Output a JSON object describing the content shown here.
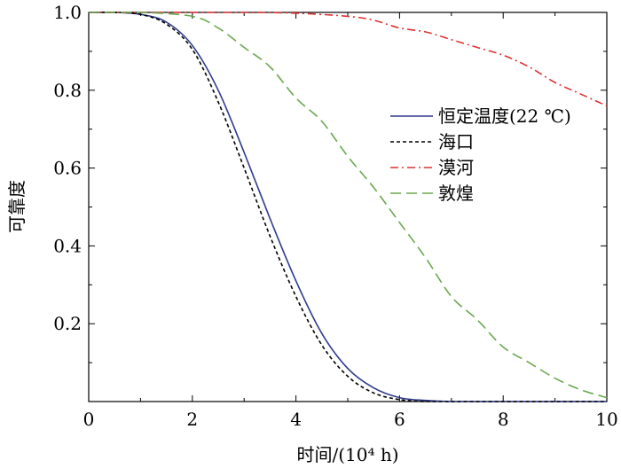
{
  "chart_data": {
    "type": "line",
    "title": "",
    "xlabel": "时间/(10⁴ h)",
    "ylabel": "可靠度",
    "xlim": [
      0,
      10
    ],
    "ylim": [
      0,
      1.0
    ],
    "x_ticks": [
      "0",
      "2",
      "4",
      "6",
      "8",
      "10"
    ],
    "y_ticks": [
      "0.2",
      "0.4",
      "0.6",
      "0.8",
      "1.0"
    ],
    "legend_position": "top-right",
    "grid": false,
    "series": [
      {
        "name": "恒定温度(22 ℃)",
        "color": "#2e3a8c",
        "dash": "solid",
        "x": [
          0,
          0.5,
          1.0,
          1.5,
          2.0,
          2.5,
          3.0,
          3.5,
          4.0,
          4.5,
          5.0,
          5.5,
          6.0,
          6.5,
          7.0,
          8.0,
          9.0,
          10.0
        ],
        "y": [
          1.0,
          1.0,
          0.995,
          0.975,
          0.915,
          0.8,
          0.64,
          0.47,
          0.31,
          0.175,
          0.085,
          0.035,
          0.01,
          0.003,
          0.0,
          0.0,
          0.0,
          0.0
        ]
      },
      {
        "name": "海口",
        "color": "#000000",
        "dash": "dotted",
        "x": [
          0,
          0.5,
          1.0,
          1.5,
          2.0,
          2.5,
          3.0,
          3.5,
          4.0,
          4.5,
          5.0,
          5.5,
          6.0,
          6.5,
          7.0,
          8.0,
          9.0,
          10.0
        ],
        "y": [
          1.0,
          1.0,
          0.995,
          0.97,
          0.905,
          0.77,
          0.6,
          0.425,
          0.27,
          0.145,
          0.065,
          0.022,
          0.005,
          0.0,
          0.0,
          0.0,
          0.0,
          0.0
        ]
      },
      {
        "name": "漠河",
        "color": "#e03030",
        "dash": "dashdot",
        "x": [
          0,
          1.0,
          2.0,
          3.0,
          4.0,
          5.0,
          5.5,
          6.0,
          6.5,
          7.0,
          7.5,
          8.0,
          8.5,
          9.0,
          9.5,
          10.0
        ],
        "y": [
          1.0,
          1.0,
          1.0,
          1.0,
          0.998,
          0.99,
          0.98,
          0.96,
          0.95,
          0.93,
          0.91,
          0.89,
          0.86,
          0.82,
          0.79,
          0.76
        ]
      },
      {
        "name": "敦煌",
        "color": "#6aa84f",
        "dash": "dashed",
        "x": [
          0,
          1.0,
          2.0,
          2.5,
          3.0,
          3.5,
          4.0,
          4.5,
          5.0,
          5.5,
          6.0,
          6.5,
          7.0,
          7.5,
          8.0,
          8.5,
          9.0,
          9.5,
          10.0
        ],
        "y": [
          1.0,
          1.0,
          0.99,
          0.96,
          0.91,
          0.86,
          0.78,
          0.72,
          0.63,
          0.55,
          0.46,
          0.37,
          0.27,
          0.21,
          0.14,
          0.1,
          0.06,
          0.03,
          0.01
        ]
      }
    ]
  }
}
